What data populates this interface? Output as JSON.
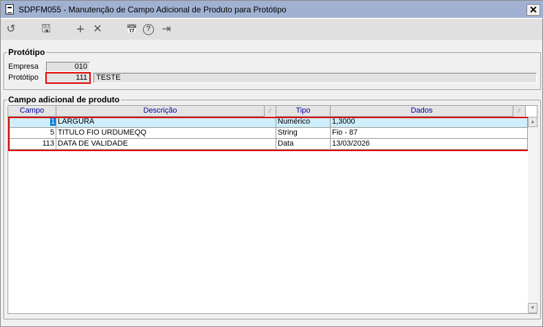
{
  "window": {
    "title": "SDPFM055 - Manutenção de Campo Adicional de Produto para Protótipo",
    "close": "✕"
  },
  "toolbar": [
    {
      "name": "undo-icon",
      "glyph": "↺"
    },
    {
      "name": "save-icon",
      "glyph": "🖫"
    },
    {
      "name": "add-icon",
      "glyph": "+"
    },
    {
      "name": "delete-icon",
      "glyph": "✕"
    },
    {
      "name": "calendar-icon",
      "glyph": "📅"
    },
    {
      "name": "help-icon",
      "glyph": "?"
    },
    {
      "name": "exit-icon",
      "glyph": "⇥"
    }
  ],
  "prototipo": {
    "legend": "Protótipo",
    "empresa_label": "Empresa",
    "empresa_value": "010",
    "prototipo_label": "Protótipo",
    "prototipo_value": "111",
    "descricao_value": "TESTE"
  },
  "campos": {
    "legend": "Campo adicional de produto",
    "columns": [
      "Campo",
      "Descrição",
      "Tipo",
      "Dados"
    ],
    "filter_glyph": "⁄⁄",
    "rows": [
      {
        "campo": "1",
        "descricao": "LARGURA",
        "tipo": "Numérico",
        "dados": "1,3000"
      },
      {
        "campo": "5",
        "descricao": "TITULO FIO URDUMEQQ",
        "tipo": "String",
        "dados": "Fio - 87"
      },
      {
        "campo": "113",
        "descricao": "DATA DE VALIDADE",
        "tipo": "Data",
        "dados": "13/03/2026"
      }
    ],
    "selected_row": 0,
    "scroll_up": "▲",
    "scroll_down": "▼"
  },
  "colors": {
    "titlebar": "#a0b1d2",
    "selected_row": "#cdeefa",
    "highlight_border": "#e00000",
    "header_text": "#0000a0"
  }
}
